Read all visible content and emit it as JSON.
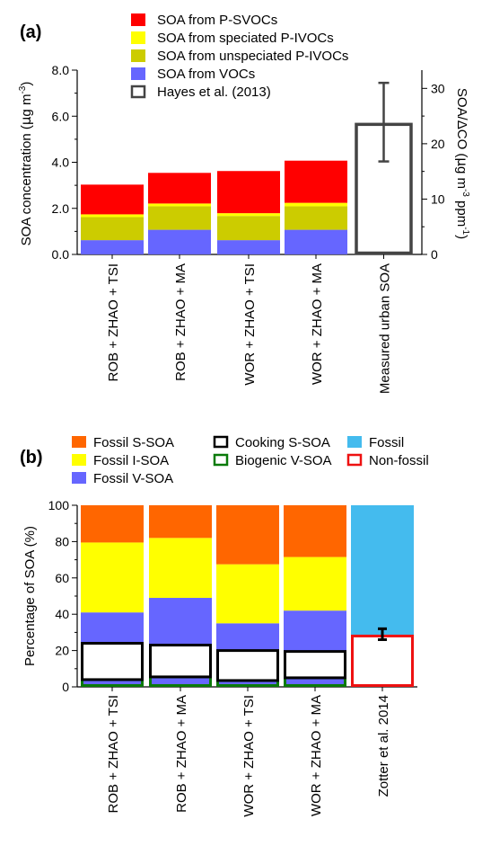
{
  "chart_data": [
    {
      "panel": "(a)",
      "type": "bar",
      "stacked": true,
      "ylabel": "SOA concentration (µg m⁻³)",
      "ylabel_parts": [
        "SOA concentration (",
        "μ",
        "g m",
        "-3",
        ")"
      ],
      "y2label": "SOA/ΔCO (µg m⁻³ ppm⁻¹)",
      "y2label_parts": [
        "SOA/ΔCO (",
        "μ",
        "g m",
        "-3",
        " ppm",
        "-1",
        ")"
      ],
      "ylim": [
        0,
        8
      ],
      "y2lim": [
        0,
        33.3
      ],
      "yticks": [
        "0.0",
        "2.0",
        "4.0",
        "6.0",
        "8.0"
      ],
      "y2ticks": [
        "0",
        "10",
        "20",
        "30"
      ],
      "categories": [
        "ROB + ZHAO + TSI",
        "ROB + ZHAO + MA",
        "WOR + ZHAO + TSI",
        "WOR + ZHAO + MA",
        "Measured urban SOA"
      ],
      "series": [
        {
          "name": "SOA from VOCs",
          "color": "#6666ff",
          "values": [
            0.62,
            1.07,
            0.62,
            1.07,
            null
          ]
        },
        {
          "name": "SOA from unspeciated P-IVOCs",
          "color": "#cccc00",
          "values": [
            1.0,
            1.02,
            1.05,
            1.02,
            null
          ]
        },
        {
          "name": "SOA from speciated P-IVOCs",
          "color": "#ffff00",
          "values": [
            0.12,
            0.12,
            0.12,
            0.15,
            null
          ]
        },
        {
          "name": "SOA from P-SVOCs",
          "color": "#ff0000",
          "values": [
            1.29,
            1.33,
            1.83,
            1.83,
            null
          ]
        }
      ],
      "legend_order": [
        "SOA from P-SVOCs",
        "SOA from speciated P-IVOCs",
        "SOA from unspeciated P-IVOCs",
        "SOA from VOCs",
        "Hayes et al. (2013)"
      ],
      "hayes": {
        "name": "Hayes et al. (2013)",
        "color": "#444444",
        "value_right_axis": 23.5,
        "error_low": 16.8,
        "error_high": 31.0
      }
    },
    {
      "panel": "(b)",
      "type": "bar",
      "stacked": true,
      "ylabel": "Percentage of SOA (%)",
      "ylim": [
        0,
        100
      ],
      "yticks": [
        "0",
        "20",
        "40",
        "60",
        "80",
        "100"
      ],
      "categories": [
        "ROB + ZHAO + TSI",
        "ROB + ZHAO + MA",
        "WOR + ZHAO + TSI",
        "WOR + ZHAO + MA",
        "Zotter et al. 2014"
      ],
      "series": [
        {
          "name": "Fossil V-SOA",
          "color": "#6666ff",
          "values": [
            41,
            49,
            35,
            42,
            null
          ]
        },
        {
          "name": "Fossil I-SOA",
          "color": "#ffff00",
          "values": [
            38.5,
            33,
            32.5,
            29.5,
            null
          ]
        },
        {
          "name": "Fossil S-SOA",
          "color": "#ff6600",
          "values": [
            20.5,
            18,
            32.5,
            28.5,
            null
          ]
        }
      ],
      "overlays": {
        "cooking": {
          "name": "Cooking S-SOA",
          "color": "#000000",
          "low": [
            4,
            5.5,
            3.5,
            5
          ],
          "high": [
            24,
            23,
            20,
            19.5
          ]
        },
        "biogenic": {
          "name": "Biogenic V-SOA",
          "color": "#0a7a0a",
          "high": [
            4,
            5.5,
            3.5,
            5
          ]
        }
      },
      "zotter": {
        "fossil_name": "Fossil",
        "fossil_color": "#44bbee",
        "nonfossil_name": "Non-fossil",
        "nonfossil_color": "#ee1111",
        "nonfossil": 28,
        "err_low": 26,
        "err_high": 32
      },
      "legend_order": [
        "Fossil S-SOA",
        "Cooking S-SOA",
        "Fossil",
        "Fossil I-SOA",
        "Biogenic V-SOA",
        "Non-fossil",
        "Fossil V-SOA"
      ]
    }
  ]
}
